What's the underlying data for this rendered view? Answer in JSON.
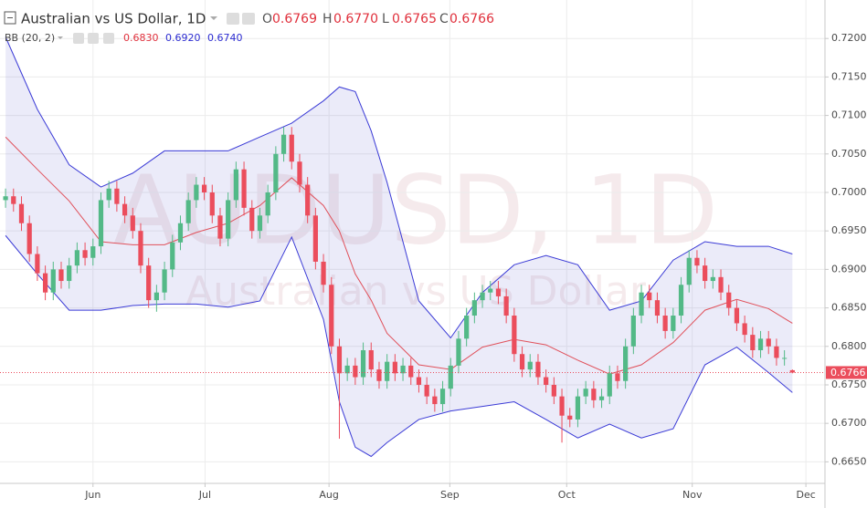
{
  "chart_data": {
    "type": "candlestick",
    "title": "Australian vs US Dollar, 1D",
    "ohlc_labels": [
      "O",
      "H",
      "L",
      "C"
    ],
    "ohlc_values": [
      {
        "value": 0.6769,
        "label": "0.6769"
      },
      {
        "value": 0.677,
        "label": "0.6770"
      },
      {
        "value": 0.6765,
        "label": "0.6765"
      },
      {
        "value": 0.6766,
        "label": "0.6766"
      }
    ],
    "indicator": {
      "name": "BB (20, 2)",
      "values": [
        {
          "value": 0.683,
          "label": "0.6830",
          "color": "#e0303c"
        },
        {
          "value": 0.692,
          "label": "0.6920",
          "color": "#2b2bd0"
        },
        {
          "value": 0.674,
          "label": "0.6740",
          "color": "#2b2bd0"
        }
      ]
    },
    "watermark": [
      "AUDUSD, 1D",
      "Australian vs US Dollar"
    ],
    "up_color": "#53b987",
    "down_color": "#eb4d5c",
    "x": [
      0,
      1,
      2,
      3,
      4,
      5,
      6,
      7,
      8,
      9,
      10,
      11,
      12,
      13,
      14,
      15,
      16,
      17,
      18,
      19,
      20,
      21,
      22,
      23,
      24,
      25,
      26,
      27,
      28,
      29,
      30,
      31,
      32,
      33,
      34,
      35,
      36,
      37,
      38,
      39,
      40,
      41,
      42,
      43,
      44,
      45,
      46,
      47,
      48,
      49,
      50,
      51,
      52,
      53,
      54,
      55,
      56,
      57,
      58,
      59,
      60,
      61,
      62,
      63,
      64,
      65,
      66,
      67,
      68,
      69,
      70,
      71,
      72,
      73,
      74,
      75,
      76,
      77,
      78,
      79,
      80,
      81,
      82,
      83,
      84,
      85,
      86,
      87,
      88,
      89,
      90,
      91,
      92,
      93,
      94,
      95,
      96,
      97,
      98,
      99
    ],
    "open": [
      0.699,
      0.6995,
      0.6985,
      0.696,
      0.692,
      0.6895,
      0.687,
      0.69,
      0.6885,
      0.6905,
      0.6925,
      0.6915,
      0.693,
      0.699,
      0.7005,
      0.6985,
      0.697,
      0.695,
      0.6905,
      0.686,
      0.687,
      0.69,
      0.6935,
      0.696,
      0.699,
      0.701,
      0.7,
      0.697,
      0.694,
      0.699,
      0.703,
      0.698,
      0.695,
      0.697,
      0.7,
      0.705,
      0.7075,
      0.704,
      0.701,
      0.697,
      0.691,
      0.688,
      0.68,
      0.6765,
      0.6775,
      0.676,
      0.6795,
      0.677,
      0.6755,
      0.678,
      0.6765,
      0.6775,
      0.676,
      0.675,
      0.6735,
      0.6725,
      0.6745,
      0.6775,
      0.681,
      0.684,
      0.686,
      0.687,
      0.6875,
      0.6865,
      0.684,
      0.679,
      0.677,
      0.678,
      0.676,
      0.675,
      0.6735,
      0.671,
      0.6705,
      0.6735,
      0.6745,
      0.673,
      0.6735,
      0.6765,
      0.6755,
      0.68,
      0.684,
      0.687,
      0.686,
      0.684,
      0.682,
      0.684,
      0.688,
      0.6915,
      0.6905,
      0.6885,
      0.689,
      0.687,
      0.685,
      0.683,
      0.6815,
      0.6795,
      0.681,
      0.68,
      0.6785,
      0.6769
    ],
    "high": [
      0.7005,
      0.7005,
      0.6995,
      0.697,
      0.693,
      0.6905,
      0.691,
      0.691,
      0.6915,
      0.6935,
      0.6935,
      0.694,
      0.7,
      0.7015,
      0.7015,
      0.6995,
      0.698,
      0.696,
      0.6915,
      0.688,
      0.691,
      0.6945,
      0.697,
      0.7,
      0.702,
      0.702,
      0.701,
      0.698,
      0.7,
      0.704,
      0.704,
      0.699,
      0.698,
      0.701,
      0.706,
      0.7085,
      0.7085,
      0.705,
      0.702,
      0.698,
      0.692,
      0.689,
      0.681,
      0.6785,
      0.6785,
      0.6805,
      0.6805,
      0.678,
      0.679,
      0.679,
      0.6785,
      0.6785,
      0.677,
      0.676,
      0.6745,
      0.6755,
      0.6785,
      0.682,
      0.685,
      0.687,
      0.688,
      0.6885,
      0.6885,
      0.6875,
      0.685,
      0.68,
      0.679,
      0.679,
      0.677,
      0.676,
      0.6745,
      0.672,
      0.6745,
      0.6755,
      0.6755,
      0.6745,
      0.6775,
      0.6775,
      0.681,
      0.685,
      0.688,
      0.688,
      0.687,
      0.685,
      0.685,
      0.689,
      0.6925,
      0.6925,
      0.6915,
      0.69,
      0.69,
      0.688,
      0.686,
      0.684,
      0.6825,
      0.682,
      0.682,
      0.681,
      0.6795,
      0.677
    ],
    "low": [
      0.698,
      0.6975,
      0.695,
      0.691,
      0.6885,
      0.686,
      0.686,
      0.6875,
      0.6875,
      0.6895,
      0.6905,
      0.6905,
      0.692,
      0.698,
      0.6975,
      0.696,
      0.694,
      0.6895,
      0.685,
      0.6845,
      0.686,
      0.689,
      0.6925,
      0.695,
      0.698,
      0.699,
      0.696,
      0.693,
      0.693,
      0.698,
      0.697,
      0.694,
      0.694,
      0.696,
      0.699,
      0.704,
      0.703,
      0.7,
      0.696,
      0.69,
      0.687,
      0.679,
      0.668,
      0.6755,
      0.675,
      0.675,
      0.676,
      0.6745,
      0.6745,
      0.6755,
      0.6755,
      0.675,
      0.674,
      0.6725,
      0.6715,
      0.6715,
      0.6735,
      0.6765,
      0.68,
      0.683,
      0.685,
      0.686,
      0.6855,
      0.683,
      0.678,
      0.676,
      0.676,
      0.675,
      0.674,
      0.6725,
      0.6675,
      0.6695,
      0.6695,
      0.6725,
      0.672,
      0.672,
      0.6725,
      0.6745,
      0.6745,
      0.679,
      0.683,
      0.685,
      0.683,
      0.681,
      0.681,
      0.683,
      0.687,
      0.6895,
      0.6875,
      0.6875,
      0.686,
      0.684,
      0.682,
      0.6805,
      0.6785,
      0.6785,
      0.679,
      0.6775,
      0.6775,
      0.6765
    ],
    "close": [
      0.6995,
      0.6985,
      0.696,
      0.692,
      0.6895,
      0.687,
      0.69,
      0.6885,
      0.6905,
      0.6925,
      0.6915,
      0.693,
      0.699,
      0.7005,
      0.6985,
      0.697,
      0.695,
      0.6905,
      0.686,
      0.687,
      0.69,
      0.6935,
      0.696,
      0.699,
      0.701,
      0.7,
      0.697,
      0.694,
      0.699,
      0.703,
      0.698,
      0.695,
      0.697,
      0.7,
      0.705,
      0.7075,
      0.704,
      0.701,
      0.697,
      0.691,
      0.688,
      0.68,
      0.6765,
      0.6775,
      0.676,
      0.6795,
      0.677,
      0.6755,
      0.678,
      0.6765,
      0.6775,
      0.676,
      0.675,
      0.6735,
      0.6725,
      0.6745,
      0.6775,
      0.681,
      0.684,
      0.686,
      0.687,
      0.6875,
      0.6865,
      0.684,
      0.679,
      0.677,
      0.678,
      0.676,
      0.675,
      0.6735,
      0.671,
      0.6705,
      0.6735,
      0.6745,
      0.673,
      0.6735,
      0.6765,
      0.6755,
      0.68,
      0.684,
      0.687,
      0.686,
      0.684,
      0.682,
      0.684,
      0.688,
      0.6915,
      0.6905,
      0.6885,
      0.689,
      0.687,
      0.685,
      0.683,
      0.6815,
      0.6795,
      0.681,
      0.68,
      0.6785,
      0.6785,
      0.6766
    ],
    "bands": {
      "x": [
        0,
        4,
        8,
        12,
        16,
        20,
        24,
        28,
        32,
        36,
        40,
        42,
        44,
        46,
        48,
        52,
        56,
        60,
        64,
        68,
        72,
        76,
        80,
        84,
        88,
        92,
        96,
        99
      ],
      "upper": [
        0.7202,
        0.7108,
        0.7036,
        0.7007,
        0.7025,
        0.7054,
        0.7054,
        0.7054,
        0.7072,
        0.709,
        0.7119,
        0.7137,
        0.7131,
        0.708,
        0.7013,
        0.6859,
        0.6811,
        0.687,
        0.6906,
        0.6918,
        0.6906,
        0.6847,
        0.6859,
        0.6912,
        0.6936,
        0.693,
        0.693,
        0.692
      ],
      "middle": [
        0.7072,
        0.703,
        0.6989,
        0.6936,
        0.6932,
        0.6932,
        0.6948,
        0.696,
        0.6983,
        0.7019,
        0.6983,
        0.695,
        0.6894,
        0.686,
        0.6817,
        0.6776,
        0.677,
        0.6799,
        0.6809,
        0.6802,
        0.6782,
        0.6764,
        0.6776,
        0.6805,
        0.6847,
        0.6861,
        0.6849,
        0.683
      ],
      "lower": [
        0.6944,
        0.6894,
        0.6847,
        0.6847,
        0.6853,
        0.6855,
        0.6855,
        0.6851,
        0.6859,
        0.6942,
        0.6835,
        0.6728,
        0.6669,
        0.6657,
        0.6675,
        0.6705,
        0.6716,
        0.6722,
        0.6728,
        0.6705,
        0.6681,
        0.6699,
        0.6681,
        0.6693,
        0.6776,
        0.6799,
        0.6766,
        0.674
      ],
      "band_color": "#3a3ad6",
      "middle_color": "#e0505a"
    },
    "last_price": {
      "value": 0.6766,
      "label": "0.6766"
    },
    "xlim": [
      -0.7,
      103.1
    ],
    "ylim": [
      0.6622,
      0.725
    ],
    "yticks": [
      {
        "value": 0.72,
        "label": "0.7200"
      },
      {
        "value": 0.715,
        "label": "0.7150"
      },
      {
        "value": 0.71,
        "label": "0.7100"
      },
      {
        "value": 0.705,
        "label": "0.7050"
      },
      {
        "value": 0.7,
        "label": "0.7000"
      },
      {
        "value": 0.695,
        "label": "0.6950"
      },
      {
        "value": 0.69,
        "label": "0.6900"
      },
      {
        "value": 0.685,
        "label": "0.6850"
      },
      {
        "value": 0.68,
        "label": "0.6800"
      },
      {
        "value": 0.675,
        "label": "0.6750"
      },
      {
        "value": 0.67,
        "label": "0.6700"
      },
      {
        "value": 0.665,
        "label": "0.6650"
      }
    ],
    "xticks": [
      {
        "value": 11,
        "label": "Jun"
      },
      {
        "value": 25.1,
        "label": "Jul"
      },
      {
        "value": 40.7,
        "label": "Aug"
      },
      {
        "value": 55.9,
        "label": "Sep"
      },
      {
        "value": 70.6,
        "label": "Oct"
      },
      {
        "value": 86.4,
        "label": "Nov"
      },
      {
        "value": 100.7,
        "label": "Dec"
      }
    ],
    "grid": true
  }
}
